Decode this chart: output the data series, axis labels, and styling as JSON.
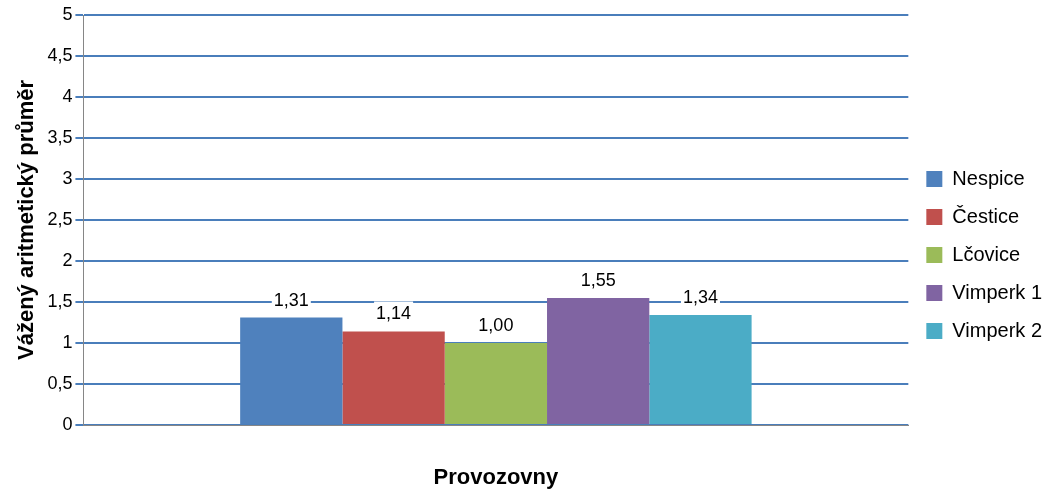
{
  "chart_data": {
    "type": "bar",
    "xlabel": "Provozovny",
    "ylabel": "Vážený aritmetický průměr",
    "categories": [
      null
    ],
    "series": [
      {
        "name": "Nespice",
        "color": "#4f81bd",
        "values": [
          1.31
        ],
        "value_labels": [
          "1,31"
        ]
      },
      {
        "name": "Čestice",
        "color": "#c0504d",
        "values": [
          1.14
        ],
        "value_labels": [
          "1,14"
        ]
      },
      {
        "name": "Lčovice",
        "color": "#9bbb59",
        "values": [
          1.0
        ],
        "value_labels": [
          "1,00"
        ]
      },
      {
        "name": "Vimperk 1",
        "color": "#8064a2",
        "values": [
          1.55
        ],
        "value_labels": [
          "1,55"
        ]
      },
      {
        "name": "Vimperk 2",
        "color": "#4bacc6",
        "values": [
          1.34
        ],
        "value_labels": [
          "1,34"
        ]
      }
    ],
    "ylim": [
      0,
      5
    ],
    "yticks": [
      0,
      {
        "value": 0.5,
        "label": "0,5"
      },
      1,
      {
        "value": 1.5,
        "label": "1,5"
      },
      2,
      {
        "value": 2.5,
        "label": "2,5"
      },
      3,
      {
        "value": 3.5,
        "label": "3,5"
      },
      4,
      {
        "value": 4.5,
        "label": "4,5"
      },
      5
    ],
    "grid": "y",
    "legend": "right"
  }
}
